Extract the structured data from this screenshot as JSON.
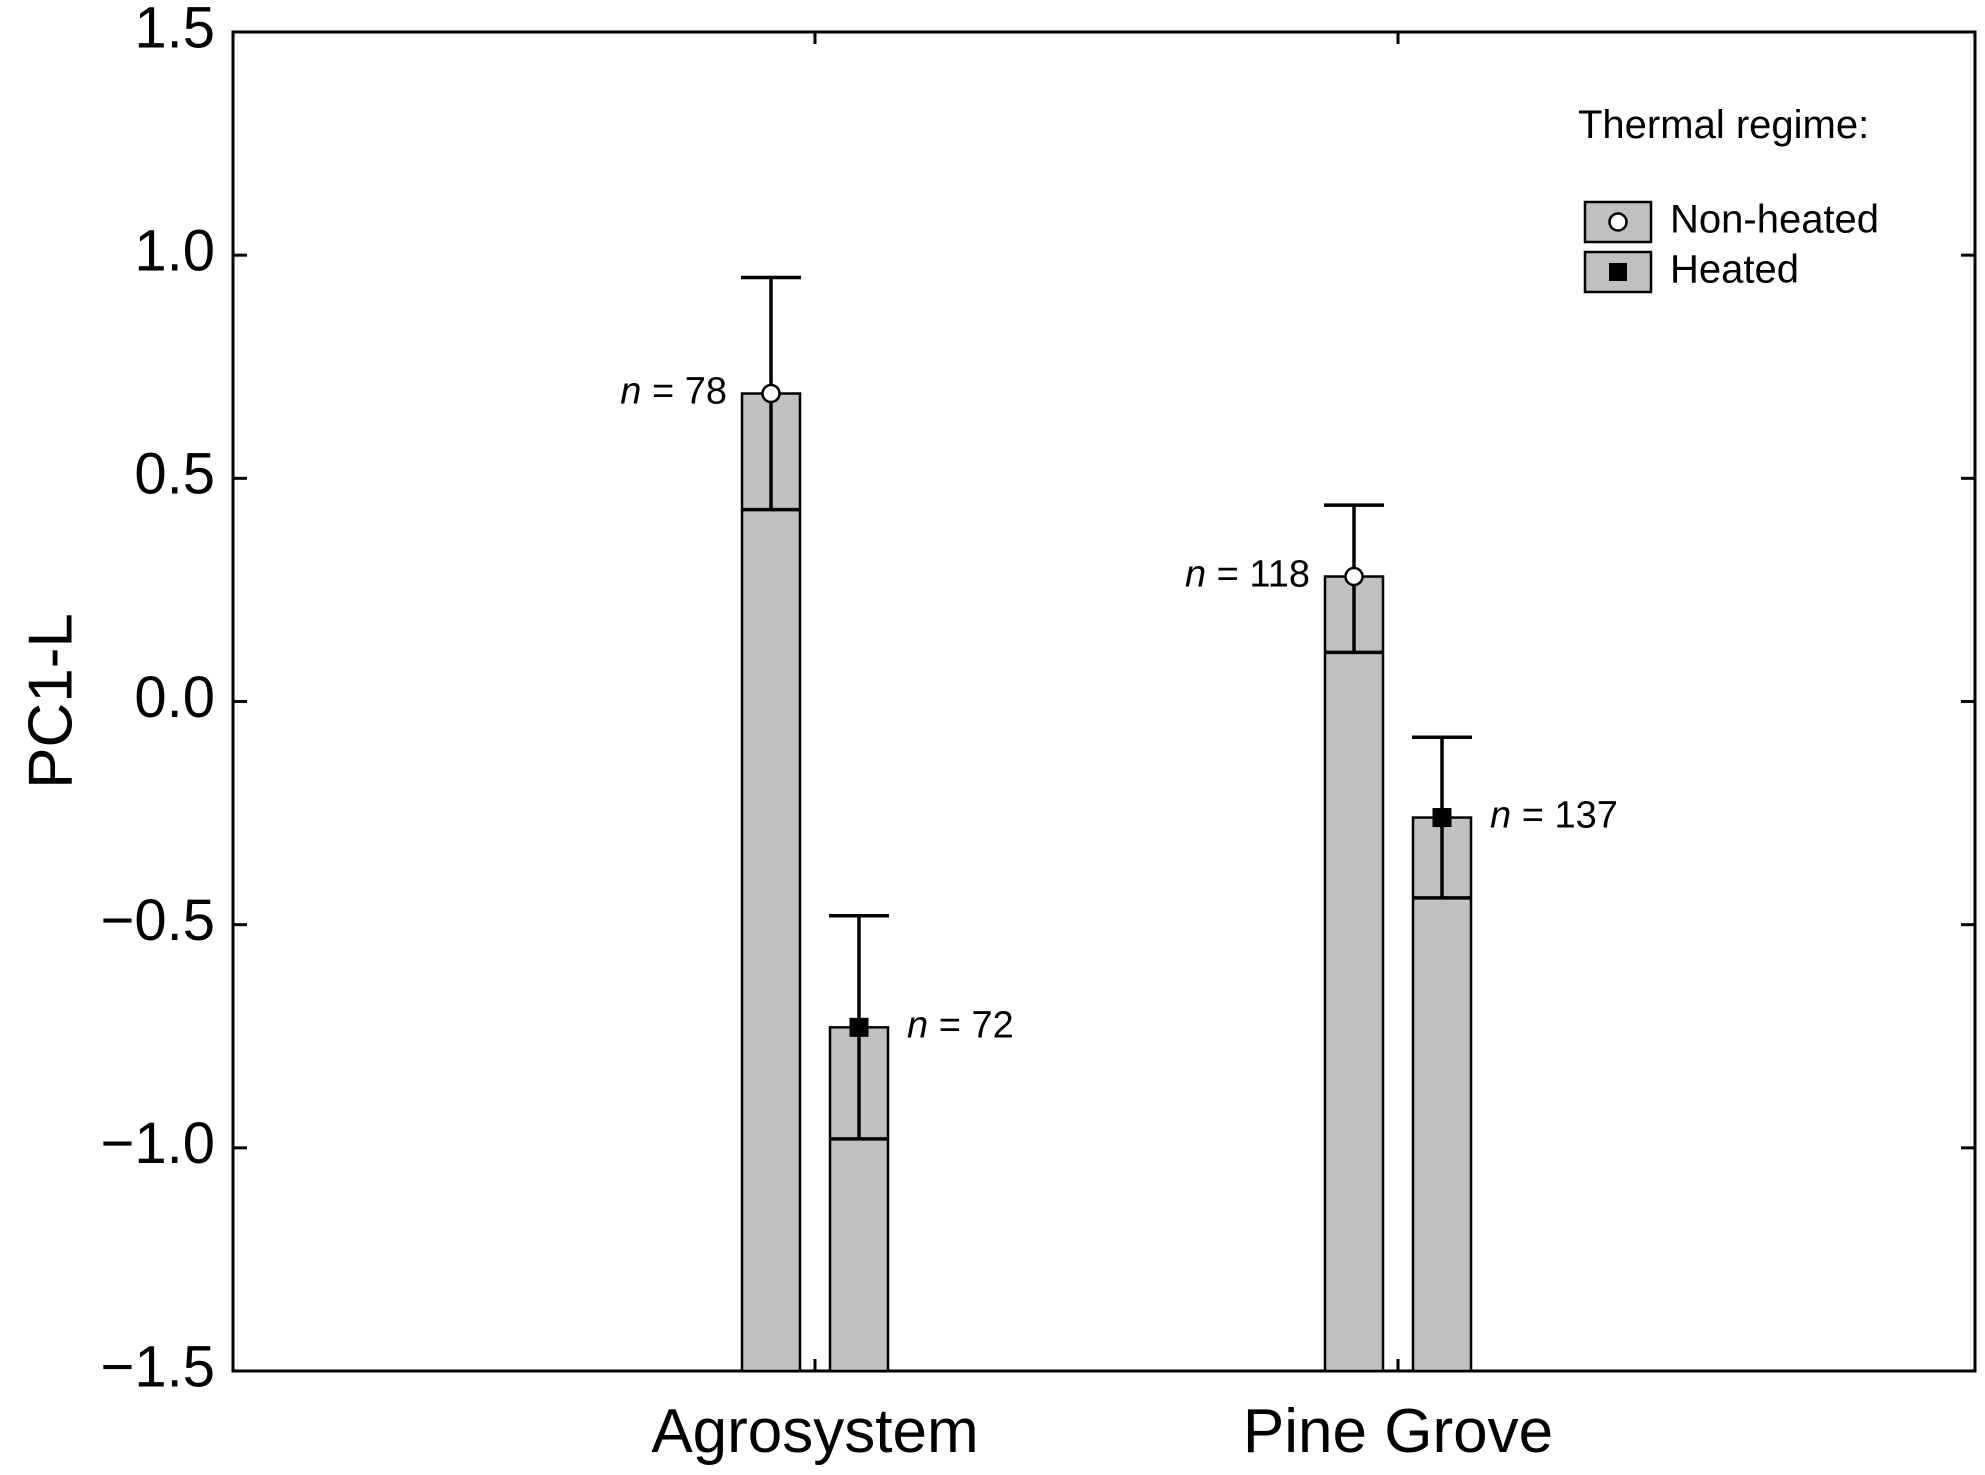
{
  "chart_data": {
    "type": "bar",
    "ylabel": "PC1-L",
    "xlabel": "",
    "ylim": [
      -1.5,
      1.5
    ],
    "yticks": [
      {
        "value": 1.5,
        "label": "1.5"
      },
      {
        "value": 1.0,
        "label": "1.0"
      },
      {
        "value": 0.5,
        "label": "0.5"
      },
      {
        "value": 0.0,
        "label": "0.0"
      },
      {
        "value": -0.5,
        "label": "−0.5"
      },
      {
        "value": -1.0,
        "label": "−1.0"
      },
      {
        "value": -1.5,
        "label": "−1.5"
      }
    ],
    "categories": [
      "Agrosystem",
      "Pine Grove"
    ],
    "legend": {
      "title": "Thermal regime:",
      "placement": "top-right",
      "items": [
        {
          "label": "Non-heated",
          "marker": "open-circle"
        },
        {
          "label": "Heated",
          "marker": "filled-square"
        }
      ]
    },
    "series": [
      {
        "name": "Non-heated",
        "marker": "open-circle",
        "values": [
          0.69,
          0.28
        ],
        "error_upper": [
          0.95,
          0.44
        ],
        "error_lower": [
          0.43,
          0.11
        ],
        "n_prefix": [
          "n",
          "n"
        ],
        "n_rest": [
          " = 78",
          " = 118"
        ]
      },
      {
        "name": "Heated",
        "marker": "filled-square",
        "values": [
          -0.73,
          -0.26
        ],
        "error_upper": [
          -0.48,
          -0.08
        ],
        "error_lower": [
          -0.98,
          -0.44
        ],
        "n_prefix": [
          "n",
          "n"
        ],
        "n_rest": [
          " = 72",
          " = 137"
        ]
      }
    ],
    "colors": {
      "bar_fill": "#c0c0c0",
      "stroke": "#000000",
      "background": "#ffffff"
    },
    "grid": false
  }
}
